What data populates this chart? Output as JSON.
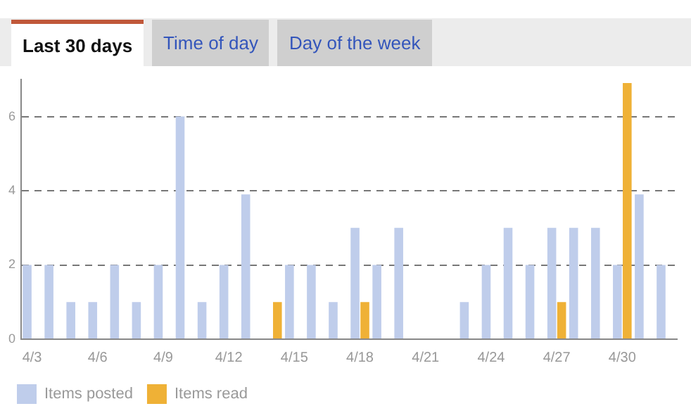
{
  "chart_data": {
    "type": "bar",
    "annotations": [
      "Last 30 days",
      "Time of day",
      "Day of the week"
    ],
    "categories": [
      "4/3",
      null,
      null,
      "4/6",
      null,
      null,
      "4/9",
      null,
      null,
      "4/12",
      null,
      null,
      "4/15",
      null,
      null,
      "4/18",
      null,
      null,
      "4/21",
      null,
      null,
      "4/24",
      null,
      null,
      "4/27",
      null,
      null,
      "4/30",
      null,
      null
    ],
    "series": [
      {
        "name": "Items posted",
        "color": "#bfcdeb",
        "values": [
          2,
          2,
          1,
          1,
          2,
          1,
          2,
          6,
          1,
          2,
          3.9,
          0,
          2,
          2,
          1,
          3,
          2,
          3,
          0,
          0,
          1,
          2,
          3,
          2,
          3,
          3,
          3,
          2,
          3.9,
          2
        ]
      },
      {
        "name": "Items read",
        "color": "#efb136",
        "values": [
          0,
          0,
          0,
          0,
          0,
          0,
          0,
          0,
          0,
          0,
          0,
          1,
          0,
          0,
          0,
          1,
          0,
          0,
          0,
          0,
          0,
          0,
          0,
          0,
          1,
          0,
          0,
          6.9,
          0,
          0
        ]
      }
    ],
    "ylim": [
      0,
      7
    ],
    "yticks": [
      0,
      2,
      4,
      6
    ],
    "grid": "y",
    "legend": "bottom left"
  }
}
